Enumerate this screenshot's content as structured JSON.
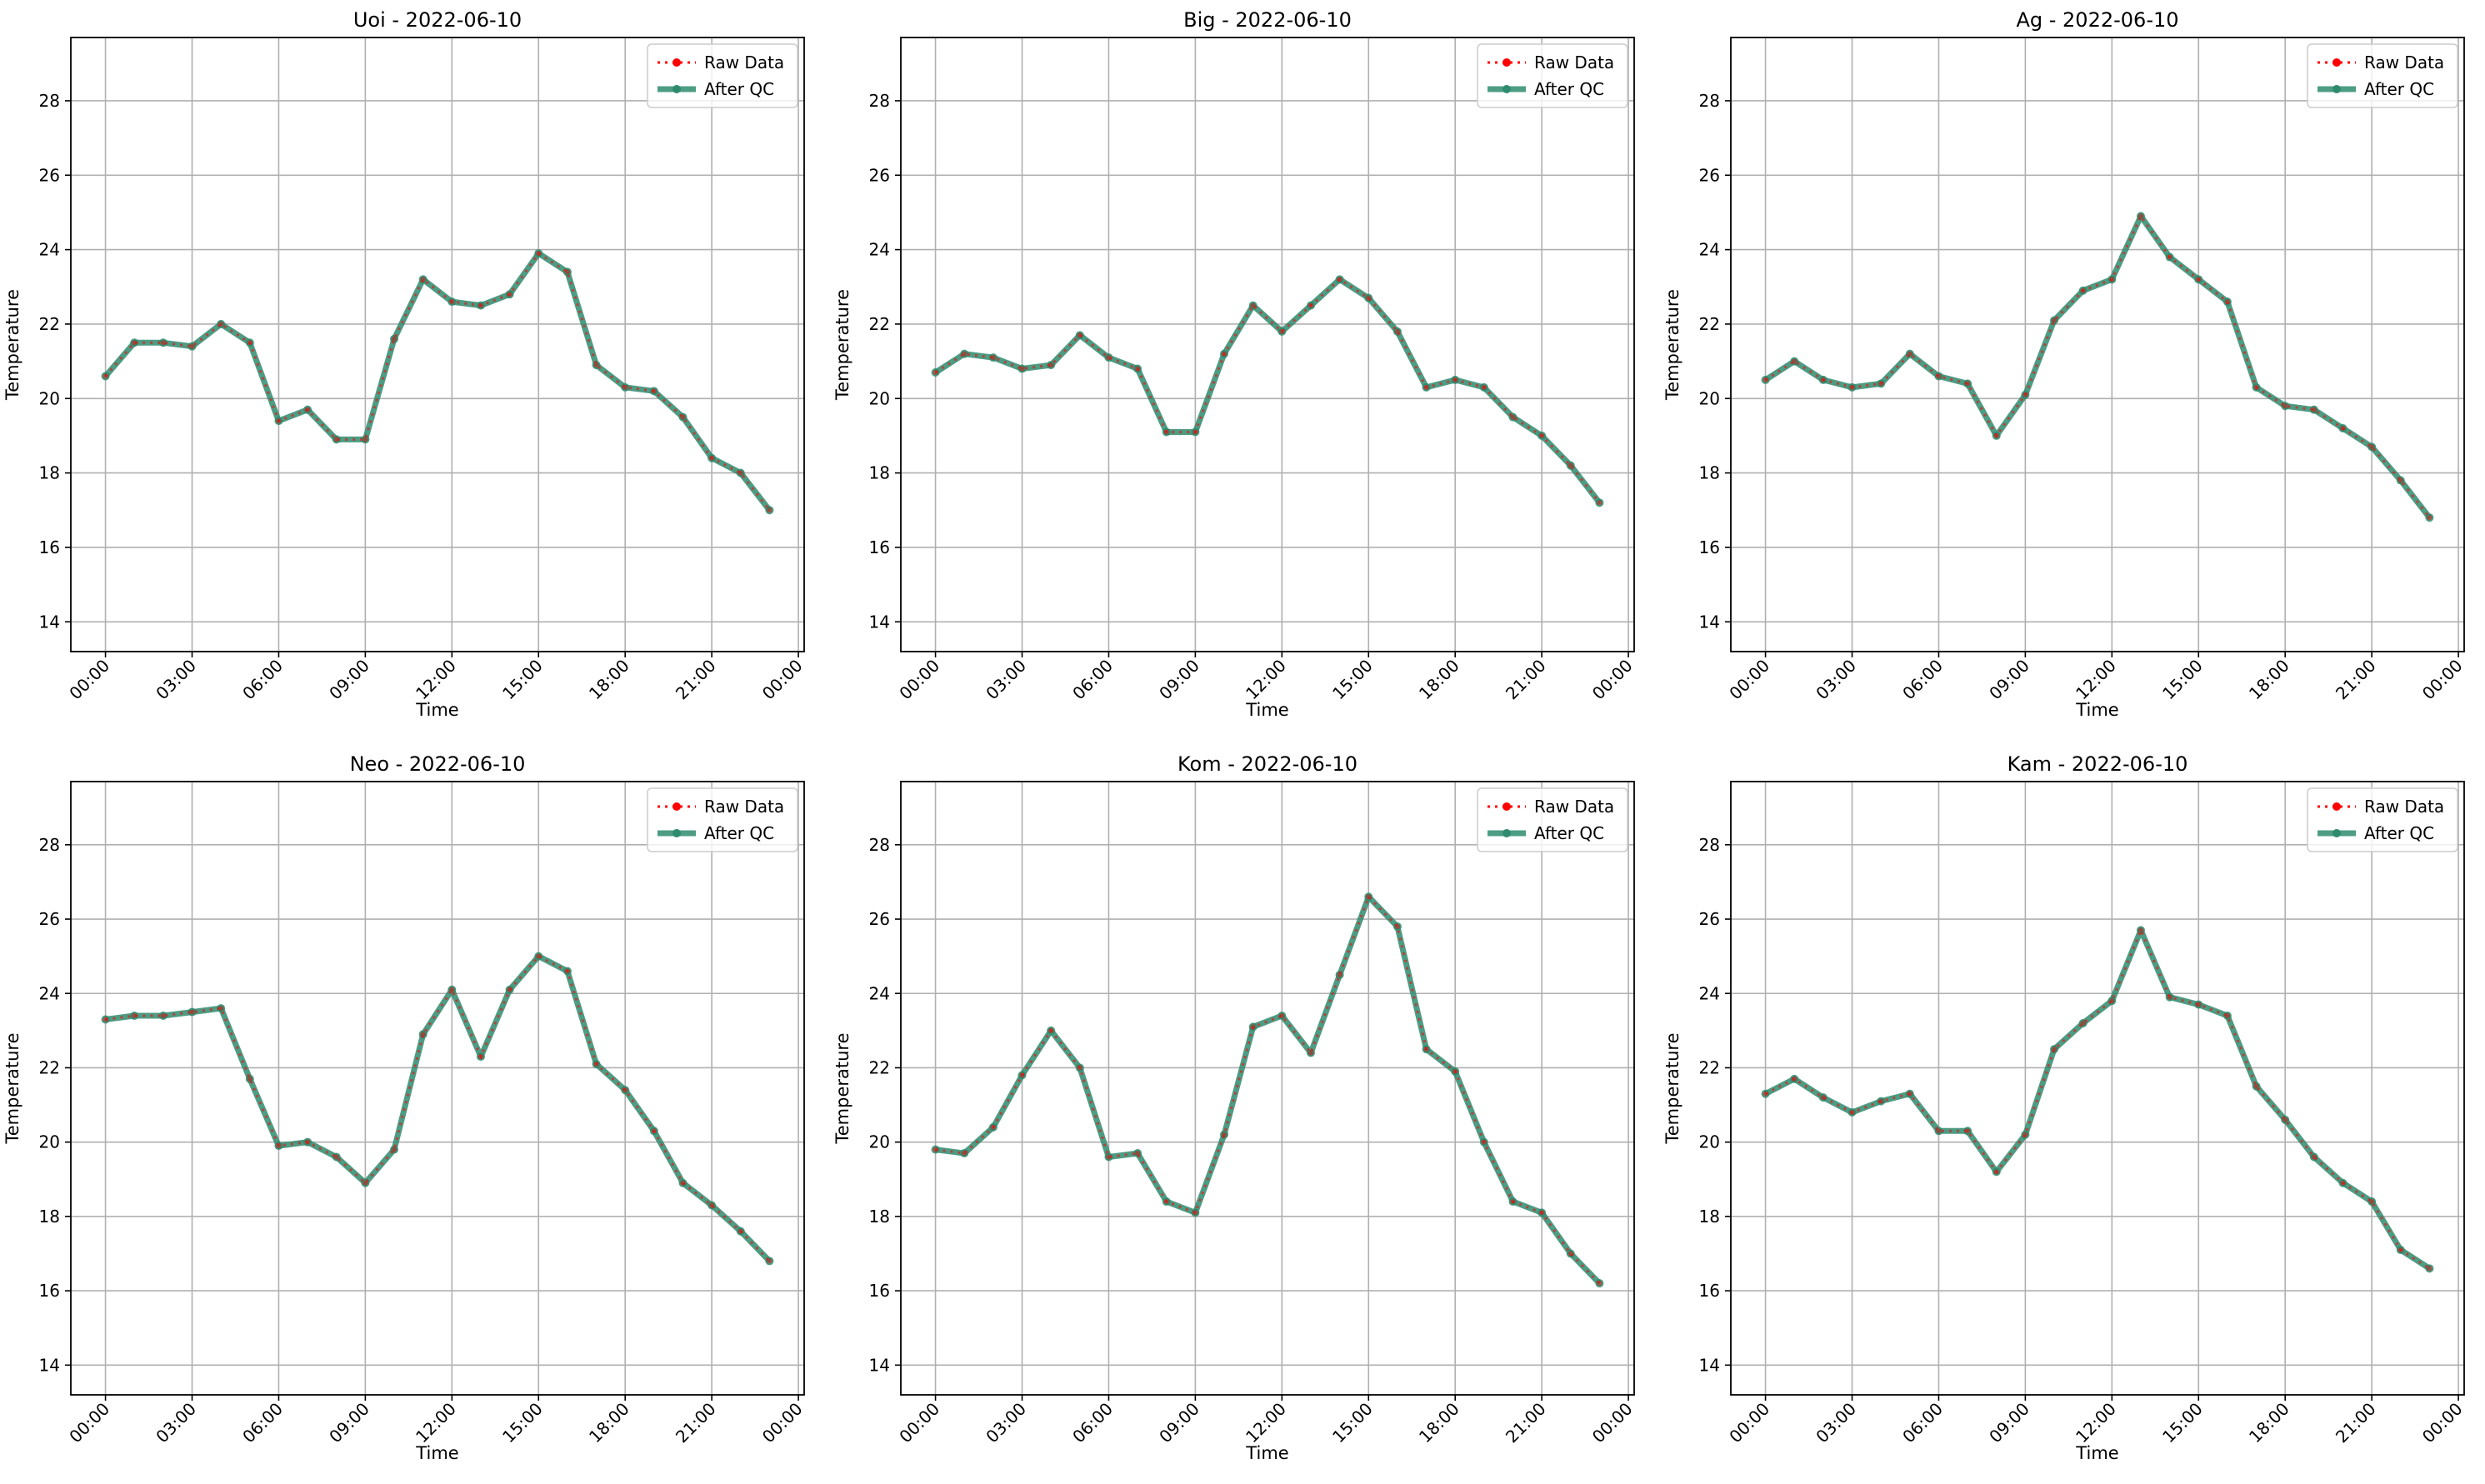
{
  "figure": {
    "background": "#ffffff"
  },
  "legend_labels": [
    "Raw Data",
    "After QC"
  ],
  "colors": {
    "raw": "#ff0000",
    "qc": "#2e8b6f",
    "grid": "#b0b0b0",
    "axis": "#000000"
  },
  "shared_axes": {
    "xlabel": "Time",
    "ylabel": "Temperature",
    "xlim_hours": [
      -1.2,
      24.2
    ],
    "ylim": [
      13.2,
      29.7
    ],
    "yticks": [
      14,
      16,
      18,
      20,
      22,
      24,
      26,
      28
    ],
    "xtick_hours": [
      0,
      3,
      6,
      9,
      12,
      15,
      18,
      21,
      24
    ],
    "xtick_labels": [
      "00:00",
      "03:00",
      "06:00",
      "09:00",
      "12:00",
      "15:00",
      "18:00",
      "21:00",
      "00:00"
    ],
    "grid": true,
    "legend_position": "top-right"
  },
  "chart_data": [
    {
      "type": "line",
      "title": "Uoi - 2022-06-10",
      "x": [
        "00:00",
        "01:00",
        "02:00",
        "03:00",
        "04:00",
        "05:00",
        "06:00",
        "07:00",
        "08:00",
        "09:00",
        "10:00",
        "11:00",
        "12:00",
        "13:00",
        "14:00",
        "15:00",
        "16:00",
        "17:00",
        "18:00",
        "19:00",
        "20:00",
        "21:00",
        "22:00",
        "23:00"
      ],
      "series": [
        {
          "name": "Raw Data",
          "values": [
            20.6,
            21.5,
            21.5,
            21.4,
            22.0,
            21.5,
            19.4,
            19.7,
            18.9,
            18.9,
            21.6,
            23.2,
            22.6,
            22.5,
            22.8,
            23.9,
            23.4,
            20.9,
            20.3,
            20.2,
            19.5,
            18.4,
            18.0,
            17.0
          ]
        },
        {
          "name": "After QC",
          "values": [
            20.6,
            21.5,
            21.5,
            21.4,
            22.0,
            21.5,
            19.4,
            19.7,
            18.9,
            18.9,
            21.6,
            23.2,
            22.6,
            22.5,
            22.8,
            23.9,
            23.4,
            20.9,
            20.3,
            20.2,
            19.5,
            18.4,
            18.0,
            17.0
          ]
        }
      ]
    },
    {
      "type": "line",
      "title": "Big - 2022-06-10",
      "x": [
        "00:00",
        "01:00",
        "02:00",
        "03:00",
        "04:00",
        "05:00",
        "06:00",
        "07:00",
        "08:00",
        "09:00",
        "10:00",
        "11:00",
        "12:00",
        "13:00",
        "14:00",
        "15:00",
        "16:00",
        "17:00",
        "18:00",
        "19:00",
        "20:00",
        "21:00",
        "22:00",
        "23:00"
      ],
      "series": [
        {
          "name": "Raw Data",
          "values": [
            20.7,
            21.2,
            21.1,
            20.8,
            20.9,
            21.7,
            21.1,
            20.8,
            19.1,
            19.1,
            21.2,
            22.5,
            21.8,
            22.5,
            23.2,
            22.7,
            21.8,
            20.3,
            20.5,
            20.3,
            19.5,
            19.0,
            18.2,
            17.2
          ]
        },
        {
          "name": "After QC",
          "values": [
            20.7,
            21.2,
            21.1,
            20.8,
            20.9,
            21.7,
            21.1,
            20.8,
            19.1,
            19.1,
            21.2,
            22.5,
            21.8,
            22.5,
            23.2,
            22.7,
            21.8,
            20.3,
            20.5,
            20.3,
            19.5,
            19.0,
            18.2,
            17.2
          ]
        }
      ]
    },
    {
      "type": "line",
      "title": "Ag - 2022-06-10",
      "x": [
        "00:00",
        "01:00",
        "02:00",
        "03:00",
        "04:00",
        "05:00",
        "06:00",
        "07:00",
        "08:00",
        "09:00",
        "10:00",
        "11:00",
        "12:00",
        "13:00",
        "14:00",
        "15:00",
        "16:00",
        "17:00",
        "18:00",
        "19:00",
        "20:00",
        "21:00",
        "22:00",
        "23:00"
      ],
      "series": [
        {
          "name": "Raw Data",
          "values": [
            20.5,
            21.0,
            20.5,
            20.3,
            20.4,
            21.2,
            20.6,
            20.4,
            19.0,
            20.1,
            22.1,
            22.9,
            23.2,
            24.9,
            23.8,
            23.2,
            22.6,
            20.3,
            19.8,
            19.7,
            19.2,
            18.7,
            17.8,
            16.8
          ]
        },
        {
          "name": "After QC",
          "values": [
            20.5,
            21.0,
            20.5,
            20.3,
            20.4,
            21.2,
            20.6,
            20.4,
            19.0,
            20.1,
            22.1,
            22.9,
            23.2,
            24.9,
            23.8,
            23.2,
            22.6,
            20.3,
            19.8,
            19.7,
            19.2,
            18.7,
            17.8,
            16.8
          ]
        }
      ]
    },
    {
      "type": "line",
      "title": "Neo - 2022-06-10",
      "x": [
        "00:00",
        "01:00",
        "02:00",
        "03:00",
        "04:00",
        "05:00",
        "06:00",
        "07:00",
        "08:00",
        "09:00",
        "10:00",
        "11:00",
        "12:00",
        "13:00",
        "14:00",
        "15:00",
        "16:00",
        "17:00",
        "18:00",
        "19:00",
        "20:00",
        "21:00",
        "22:00",
        "23:00"
      ],
      "series": [
        {
          "name": "Raw Data",
          "values": [
            23.3,
            23.4,
            23.4,
            23.5,
            23.6,
            21.7,
            19.9,
            20.0,
            19.6,
            18.9,
            19.8,
            22.9,
            24.1,
            22.3,
            24.1,
            25.0,
            24.6,
            22.1,
            21.4,
            20.3,
            18.9,
            18.3,
            17.6,
            16.8
          ]
        },
        {
          "name": "After QC",
          "values": [
            23.3,
            23.4,
            23.4,
            23.5,
            23.6,
            21.7,
            19.9,
            20.0,
            19.6,
            18.9,
            19.8,
            22.9,
            24.1,
            22.3,
            24.1,
            25.0,
            24.6,
            22.1,
            21.4,
            20.3,
            18.9,
            18.3,
            17.6,
            16.8
          ]
        }
      ]
    },
    {
      "type": "line",
      "title": "Kom - 2022-06-10",
      "x": [
        "00:00",
        "01:00",
        "02:00",
        "03:00",
        "04:00",
        "05:00",
        "06:00",
        "07:00",
        "08:00",
        "09:00",
        "10:00",
        "11:00",
        "12:00",
        "13:00",
        "14:00",
        "15:00",
        "16:00",
        "17:00",
        "18:00",
        "19:00",
        "20:00",
        "21:00",
        "22:00",
        "23:00"
      ],
      "series": [
        {
          "name": "Raw Data",
          "values": [
            19.8,
            19.7,
            20.4,
            21.8,
            23.0,
            22.0,
            19.6,
            19.7,
            18.4,
            18.1,
            20.2,
            23.1,
            23.4,
            22.4,
            24.5,
            26.6,
            25.8,
            22.5,
            21.9,
            20.0,
            18.4,
            18.1,
            17.0,
            16.2
          ]
        },
        {
          "name": "After QC",
          "values": [
            19.8,
            19.7,
            20.4,
            21.8,
            23.0,
            22.0,
            19.6,
            19.7,
            18.4,
            18.1,
            20.2,
            23.1,
            23.4,
            22.4,
            24.5,
            26.6,
            25.8,
            22.5,
            21.9,
            20.0,
            18.4,
            18.1,
            17.0,
            16.2
          ]
        }
      ]
    },
    {
      "type": "line",
      "title": "Kam - 2022-06-10",
      "x": [
        "00:00",
        "01:00",
        "02:00",
        "03:00",
        "04:00",
        "05:00",
        "06:00",
        "07:00",
        "08:00",
        "09:00",
        "10:00",
        "11:00",
        "12:00",
        "13:00",
        "14:00",
        "15:00",
        "16:00",
        "17:00",
        "18:00",
        "19:00",
        "20:00",
        "21:00",
        "22:00",
        "23:00"
      ],
      "series": [
        {
          "name": "Raw Data",
          "values": [
            21.3,
            21.7,
            21.2,
            20.8,
            21.1,
            21.3,
            20.3,
            20.3,
            19.2,
            20.2,
            22.5,
            23.2,
            23.8,
            25.7,
            23.9,
            23.7,
            23.4,
            21.5,
            20.6,
            19.6,
            18.9,
            18.4,
            17.1,
            16.6
          ]
        },
        {
          "name": "After QC",
          "values": [
            21.3,
            21.7,
            21.2,
            20.8,
            21.1,
            21.3,
            20.3,
            20.3,
            19.2,
            20.2,
            22.5,
            23.2,
            23.8,
            25.7,
            23.9,
            23.7,
            23.4,
            21.5,
            20.6,
            19.6,
            18.9,
            18.4,
            17.1,
            16.6
          ]
        }
      ]
    }
  ]
}
